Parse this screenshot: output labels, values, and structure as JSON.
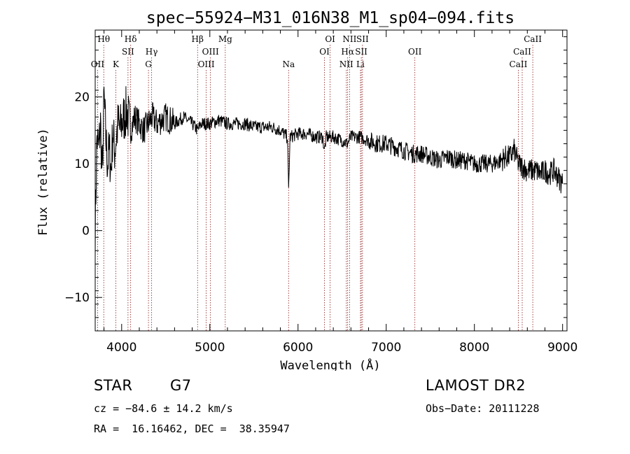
{
  "chart_data": {
    "type": "line",
    "title": "spec−55924−M31_016N38_M1_sp04−094.fits",
    "xlabel": "Wavelength (Å)",
    "ylabel": "Flux (relative)",
    "xlim": [
      3700,
      9050
    ],
    "ylim": [
      -15,
      30
    ],
    "xticks": [
      4000,
      5000,
      6000,
      7000,
      8000,
      9000
    ],
    "yticks": [
      -10,
      0,
      10,
      20
    ],
    "grid": false,
    "series": [
      {
        "color": "#000000",
        "x": [
          3700,
          3720,
          3740,
          3760,
          3780,
          3800,
          3820,
          3840,
          3860,
          3880,
          3900,
          3920,
          3940,
          3960,
          3980,
          4000,
          4030,
          4060,
          4100,
          4150,
          4200,
          4250,
          4300,
          4350,
          4400,
          4500,
          4600,
          4700,
          4800,
          4861,
          4900,
          5000,
          5100,
          5200,
          5300,
          5400,
          5500,
          5600,
          5700,
          5800,
          5880,
          5893,
          5910,
          6000,
          6100,
          6200,
          6280,
          6300,
          6320,
          6400,
          6500,
          6560,
          6600,
          6700,
          6800,
          6900,
          7000,
          7100,
          7200,
          7300,
          7400,
          7500,
          7600,
          7700,
          7800,
          7900,
          8000,
          8100,
          8200,
          8300,
          8350,
          8400,
          8450,
          8500,
          8550,
          8600,
          8650,
          8700,
          8750,
          8800,
          8850,
          8900,
          8950,
          9000
        ],
        "values": [
          0,
          14,
          12,
          16,
          8,
          20,
          14,
          10,
          12,
          9,
          15,
          12,
          14,
          16,
          15,
          16,
          17,
          18,
          15,
          17,
          16,
          15,
          16,
          17,
          16,
          17,
          16,
          17,
          16,
          15,
          16,
          16,
          16.5,
          16,
          16,
          16,
          15.5,
          15.5,
          15.5,
          15,
          14,
          6,
          14,
          14.5,
          14.5,
          14,
          14,
          12,
          14,
          14,
          13.5,
          13,
          14,
          14,
          13.5,
          13,
          13,
          12.5,
          12,
          11.5,
          11.5,
          11,
          10.5,
          11,
          10.5,
          10.5,
          10,
          10,
          10,
          10.5,
          11,
          11,
          12,
          10,
          9.5,
          9,
          9,
          9,
          8.5,
          9,
          8.5,
          9,
          8,
          7
        ]
      }
    ],
    "line_markers": [
      {
        "label": "OII",
        "x": 3727,
        "row": 2
      },
      {
        "label": "Hθ",
        "x": 3797,
        "row": 0
      },
      {
        "label": "K",
        "x": 3934,
        "row": 2
      },
      {
        "label": "SII",
        "x": 4072,
        "row": 1
      },
      {
        "label": "Hδ",
        "x": 4102,
        "row": 0
      },
      {
        "label": "Hγ",
        "x": 4340,
        "row": 1
      },
      {
        "label": "G",
        "x": 4304,
        "row": 2
      },
      {
        "label": "Hβ",
        "x": 4861,
        "row": 0
      },
      {
        "label": "OIII",
        "x": 4959,
        "row": 2
      },
      {
        "label": "OIII",
        "x": 5007,
        "row": 1
      },
      {
        "label": "Mg",
        "x": 5175,
        "row": 0
      },
      {
        "label": "Na",
        "x": 5893,
        "row": 2
      },
      {
        "label": "OI",
        "x": 6300,
        "row": 1
      },
      {
        "label": "OI",
        "x": 6364,
        "row": 0
      },
      {
        "label": "NII",
        "x": 6548,
        "row": 2
      },
      {
        "label": "Hα",
        "x": 6563,
        "row": 1
      },
      {
        "label": "NII",
        "x": 6584,
        "row": 0
      },
      {
        "label": "Li",
        "x": 6708,
        "row": 2
      },
      {
        "label": "SII",
        "x": 6717,
        "row": 1
      },
      {
        "label": "SII",
        "x": 6731,
        "row": 0
      },
      {
        "label": "OII",
        "x": 7325,
        "row": 1
      },
      {
        "label": "CaII",
        "x": 8498,
        "row": 2
      },
      {
        "label": "CaII",
        "x": 8542,
        "row": 1
      },
      {
        "label": "CaII",
        "x": 8662,
        "row": 0
      }
    ],
    "marker_color": "#8b1a1a"
  },
  "info": {
    "class": "STAR",
    "subclass": "G7",
    "survey": "LAMOST DR2",
    "cz": "cz = −84.6 ± 14.2 km/s",
    "obs_date": "Obs−Date: 20111228",
    "radec": "RA =  16.16462, DEC =  38.35947"
  }
}
